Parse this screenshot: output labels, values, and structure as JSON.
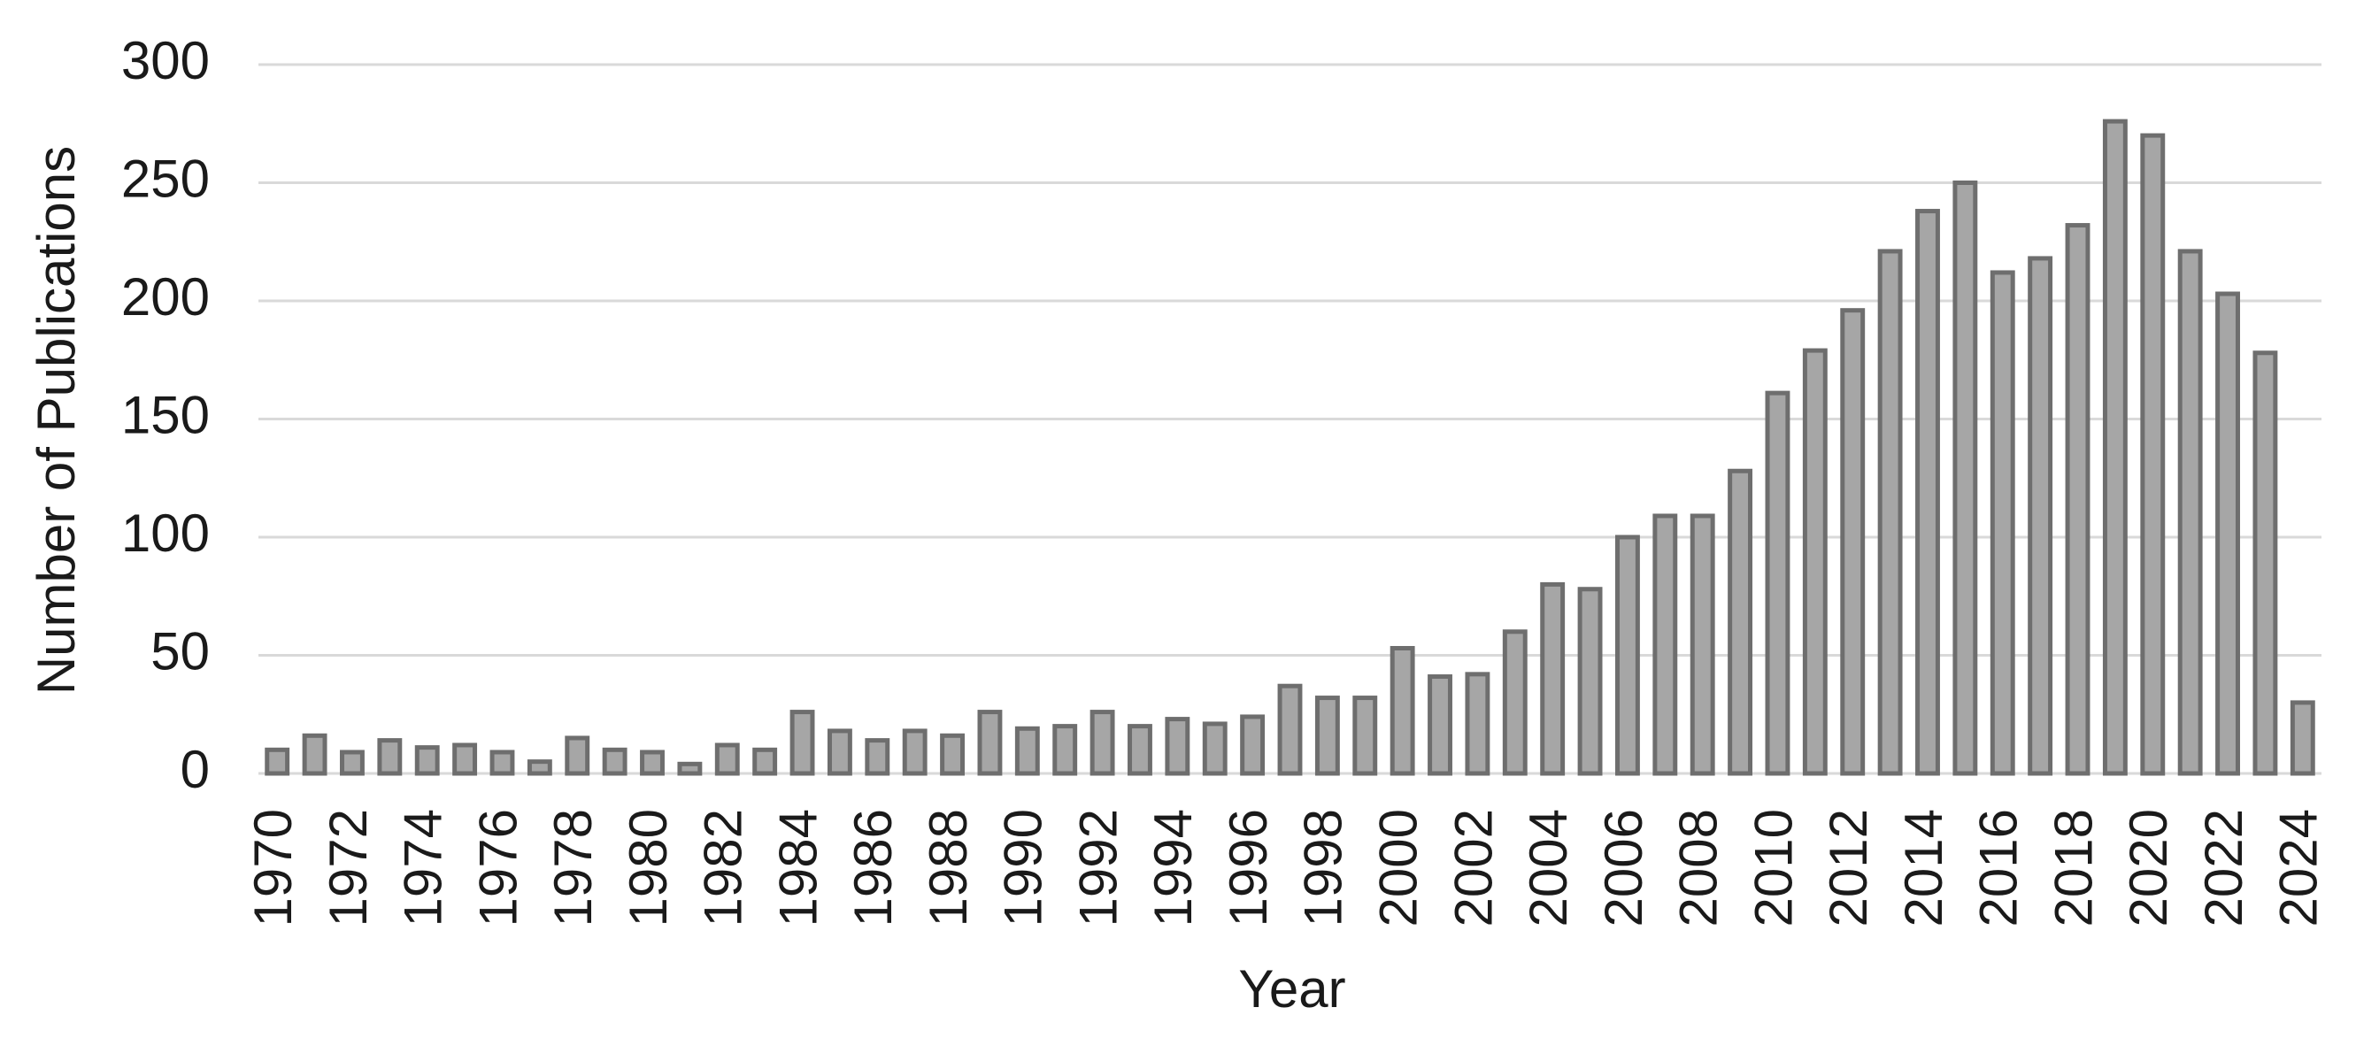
{
  "chart_data": {
    "type": "bar",
    "x_label": "Year",
    "y_label": "Number of Publications",
    "categories": [
      "1970",
      null,
      "1972",
      null,
      "1974",
      null,
      "1976",
      null,
      "1978",
      null,
      "1980",
      null,
      "1982",
      null,
      "1984",
      null,
      "1986",
      null,
      "1988",
      null,
      "1990",
      null,
      "1992",
      null,
      "1994",
      null,
      "1996",
      null,
      "1998",
      null,
      "2000",
      null,
      "2002",
      null,
      "2004",
      null,
      "2006",
      null,
      "2008",
      null,
      "2010",
      null,
      "2012",
      null,
      "2014",
      null,
      "2016",
      null,
      "2018",
      null,
      "2020",
      null,
      "2022",
      null,
      "2024"
    ],
    "values": [
      10,
      16,
      9,
      14,
      11,
      12,
      9,
      5,
      15,
      10,
      9,
      4,
      12,
      10,
      26,
      18,
      14,
      18,
      16,
      26,
      19,
      20,
      26,
      20,
      23,
      21,
      24,
      37,
      32,
      32,
      53,
      41,
      42,
      60,
      80,
      78,
      100,
      109,
      109,
      128,
      161,
      179,
      196,
      221,
      238,
      250,
      212,
      218,
      232,
      276,
      270,
      221,
      203,
      178,
      30
    ],
    "color": "#a6a6a6",
    "ylim": [
      0,
      300
    ],
    "yticks": [
      0,
      50,
      100,
      150,
      200,
      250,
      300
    ],
    "grid": true
  }
}
